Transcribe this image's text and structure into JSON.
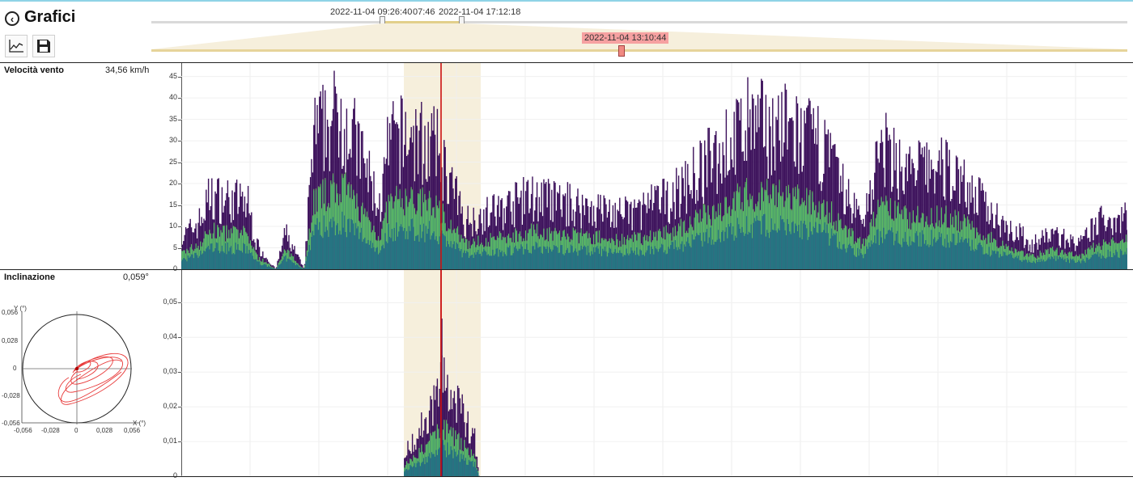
{
  "header": {
    "back_icon": "chevron-left-icon",
    "title": "Grafici",
    "chart_button_icon": "line-chart-icon",
    "save_button_icon": "floppy-disk-icon"
  },
  "range_selector": {
    "start_label": "2022-11-04 09:26:40",
    "duration_label": "07:46",
    "end_label": "2022-11-04 17:12:18",
    "cursor_label": "2022-11-04 13:10:44"
  },
  "wind_panel": {
    "title": "Velocità vento",
    "value": "34,56 km/h",
    "ticks": [
      "45",
      "40",
      "35",
      "30",
      "25",
      "20",
      "15",
      "10",
      "5",
      "0"
    ]
  },
  "tilt_panel": {
    "title": "Inclinazione",
    "value": "0,059°",
    "ticks": [
      "0,05",
      "0,04",
      "0,03",
      "0,02",
      "0,01",
      "0"
    ],
    "polar": {
      "y_axis_label": "Y (°)",
      "x_axis_label": "X (°)",
      "y_ticks": [
        "0,056",
        "0,028",
        "0",
        "-0,028",
        "-0,056"
      ],
      "x_ticks": [
        "-0,056",
        "-0,028",
        "0",
        "0,028",
        "0,056"
      ]
    }
  },
  "colors": {
    "highlight_band": "#f6efdc",
    "cursor_line": "#cc1111",
    "series_dark": "#3b0f5a",
    "series_mid": "#1f8a8a",
    "series_light": "#6fd25a",
    "polar_trace": "#e83a3a"
  },
  "chart_data": [
    {
      "type": "area",
      "title": "Velocità vento",
      "ylabel": "km/h",
      "ylim": [
        0,
        47
      ],
      "profile": [
        [
          0,
          5
        ],
        [
          0.02,
          8
        ],
        [
          0.03,
          12
        ],
        [
          0.07,
          11
        ],
        [
          0.08,
          4
        ],
        [
          0.1,
          0
        ],
        [
          0.11,
          6
        ],
        [
          0.13,
          0
        ],
        [
          0.14,
          22
        ],
        [
          0.17,
          26
        ],
        [
          0.19,
          19
        ],
        [
          0.21,
          10
        ],
        [
          0.22,
          21
        ],
        [
          0.24,
          22
        ],
        [
          0.27,
          20
        ],
        [
          0.3,
          8
        ],
        [
          0.34,
          10
        ],
        [
          0.37,
          12
        ],
        [
          0.4,
          11
        ],
        [
          0.44,
          10
        ],
        [
          0.47,
          9
        ],
        [
          0.52,
          12
        ],
        [
          0.56,
          18
        ],
        [
          0.6,
          24
        ],
        [
          0.64,
          23
        ],
        [
          0.68,
          20
        ],
        [
          0.7,
          13
        ],
        [
          0.72,
          8
        ],
        [
          0.74,
          20
        ],
        [
          0.77,
          16
        ],
        [
          0.79,
          17
        ],
        [
          0.82,
          16
        ],
        [
          0.84,
          12
        ],
        [
          0.86,
          9
        ],
        [
          0.9,
          4
        ],
        [
          0.92,
          6
        ],
        [
          0.95,
          4
        ],
        [
          0.97,
          8
        ],
        [
          1.0,
          9
        ]
      ]
    },
    {
      "type": "area",
      "title": "Inclinazione",
      "ylabel": "°",
      "ylim": [
        0,
        0.058
      ],
      "profile": [
        [
          0.235,
          0.004
        ],
        [
          0.26,
          0.012
        ],
        [
          0.275,
          0.02
        ],
        [
          0.29,
          0.015
        ],
        [
          0.31,
          0.008
        ],
        [
          0.315,
          0.0
        ]
      ]
    }
  ]
}
